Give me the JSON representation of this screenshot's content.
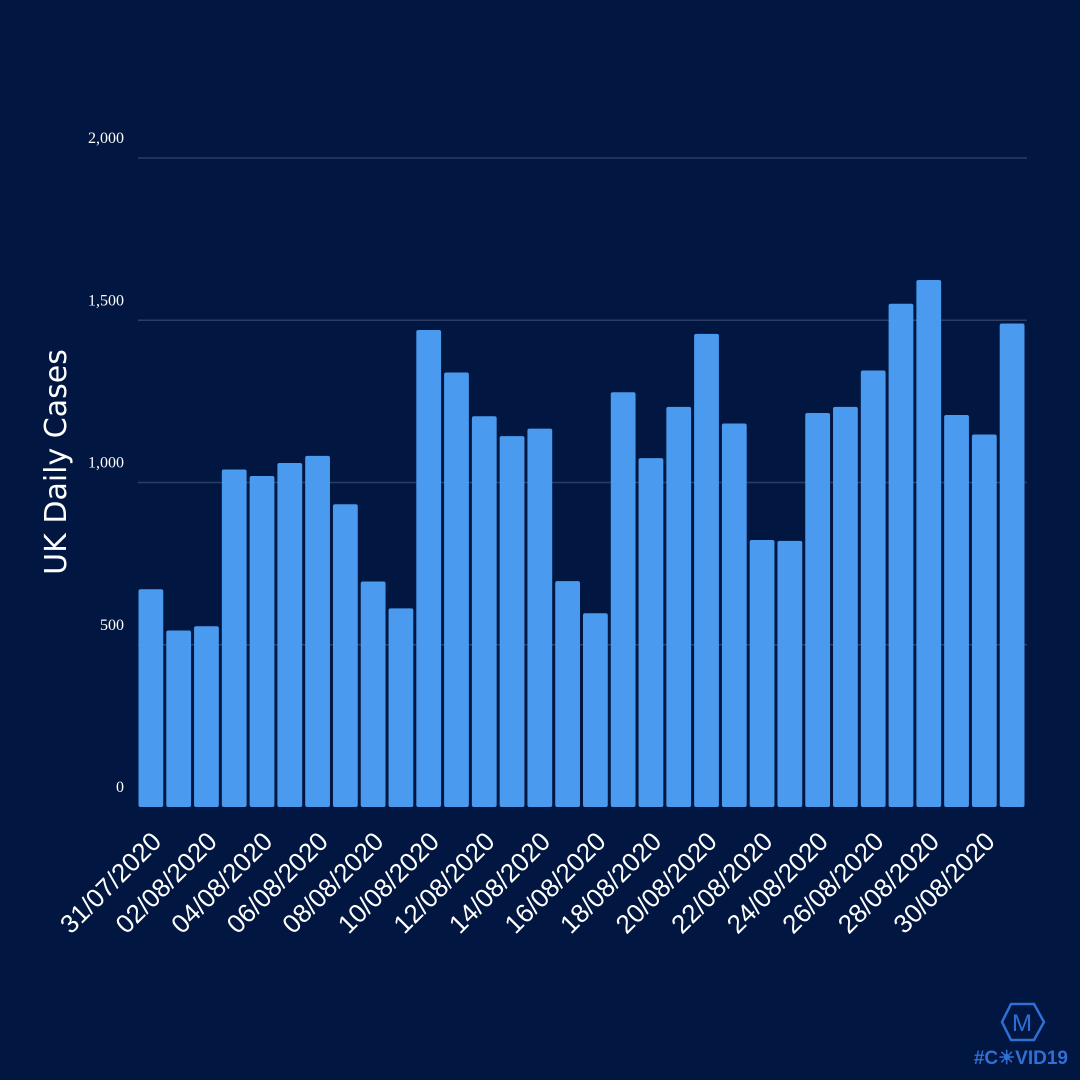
{
  "chart_data": {
    "type": "bar",
    "ylabel": "UK Daily Cases",
    "xlabel": "",
    "title": "",
    "ylim": [
      0,
      2000
    ],
    "yticks": [
      0,
      500,
      1000,
      1500,
      2000
    ],
    "ytick_labels": [
      "0",
      "500",
      "1,000",
      "1,500",
      "2,000"
    ],
    "grid": true,
    "categories": [
      "31/07/2020",
      "01/08/2020",
      "02/08/2020",
      "03/08/2020",
      "04/08/2020",
      "05/08/2020",
      "06/08/2020",
      "07/08/2020",
      "08/08/2020",
      "09/08/2020",
      "10/08/2020",
      "11/08/2020",
      "12/08/2020",
      "13/08/2020",
      "14/08/2020",
      "15/08/2020",
      "16/08/2020",
      "17/08/2020",
      "18/08/2020",
      "19/08/2020",
      "20/08/2020",
      "21/08/2020",
      "22/08/2020",
      "23/08/2020",
      "24/08/2020",
      "25/08/2020",
      "26/08/2020",
      "27/08/2020",
      "28/08/2020",
      "29/08/2020",
      "30/08/2020",
      "31/08/2020"
    ],
    "xtick_labels": [
      "31/07/2020",
      "02/08/2020",
      "04/08/2020",
      "06/08/2020",
      "08/08/2020",
      "10/08/2020",
      "12/08/2020",
      "14/08/2020",
      "16/08/2020",
      "18/08/2020",
      "20/08/2020",
      "22/08/2020",
      "24/08/2020",
      "26/08/2020",
      "28/08/2020",
      "30/08/2020"
    ],
    "values": [
      671,
      544,
      557,
      1040,
      1020,
      1060,
      1082,
      933,
      695,
      612,
      1470,
      1339,
      1204,
      1143,
      1166,
      696,
      597,
      1278,
      1075,
      1233,
      1458,
      1182,
      823,
      820,
      1214,
      1233,
      1345,
      1551,
      1624,
      1208,
      1148,
      1490
    ]
  },
  "colors": {
    "background": "#011640",
    "bar": "#4a9bef",
    "grid": "#2c3d66",
    "logo": "#2f6fd6"
  },
  "logo": {
    "letter": "M",
    "hashtag": "#C☀VID19"
  }
}
